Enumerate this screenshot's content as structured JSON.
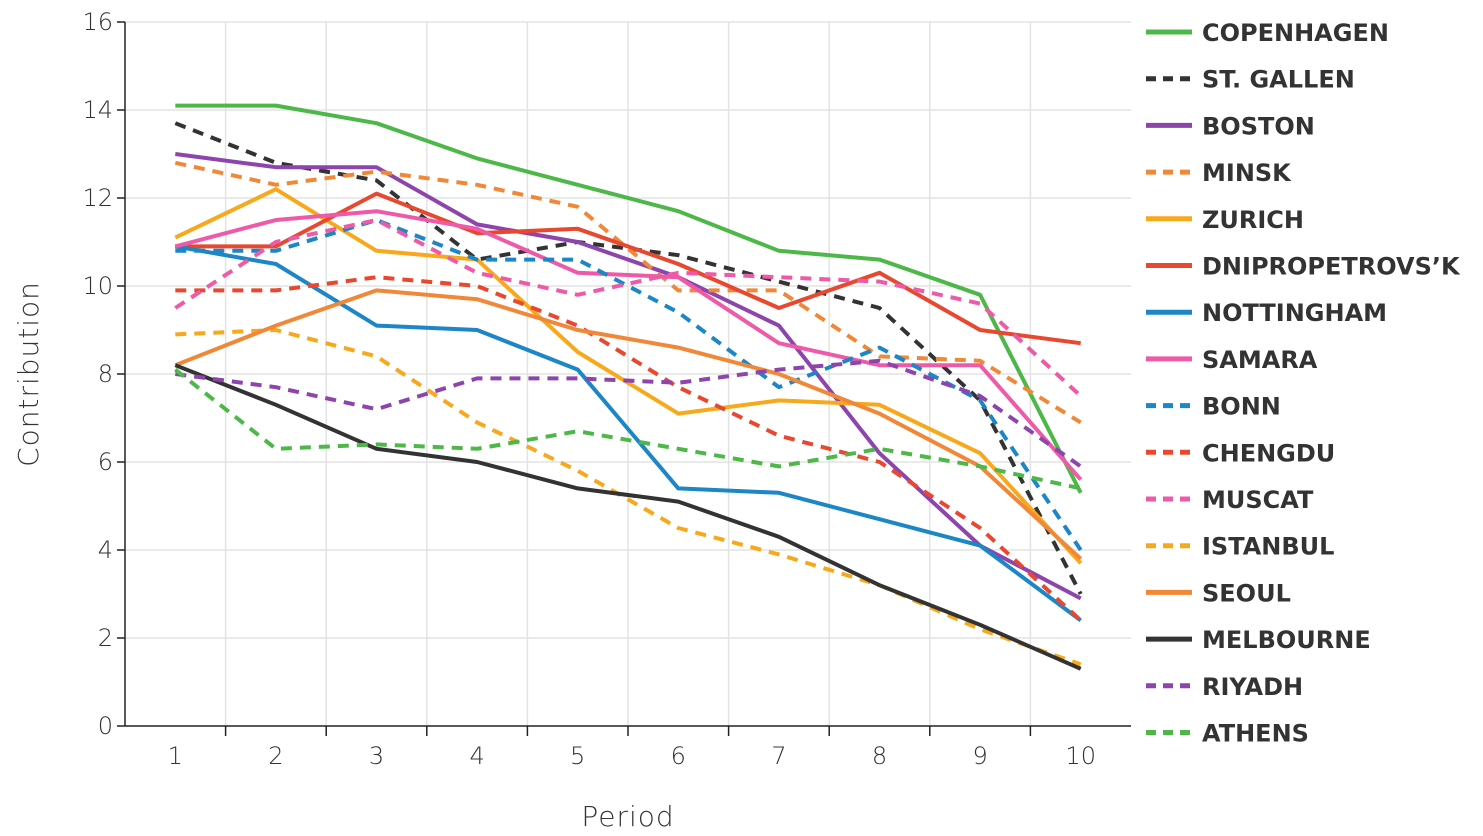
{
  "chart_data": {
    "type": "line",
    "xlabel": "Period",
    "ylabel": "Contribution",
    "x": [
      1,
      2,
      3,
      4,
      5,
      6,
      7,
      8,
      9,
      10
    ],
    "xlim": [
      0.5,
      10.5
    ],
    "ylim": [
      0,
      16
    ],
    "yticks": [
      0,
      2,
      4,
      6,
      8,
      10,
      12,
      14,
      16
    ],
    "grid": true,
    "legend_position": "right",
    "series": [
      {
        "name": "COPENHAGEN",
        "color": "#4db848",
        "dashed": false,
        "values": [
          14.1,
          14.1,
          13.7,
          12.9,
          12.3,
          11.7,
          10.8,
          10.6,
          9.8,
          5.3
        ]
      },
      {
        "name": "ST. GALLEN",
        "color": "#333333",
        "dashed": true,
        "values": [
          13.7,
          12.8,
          12.4,
          10.6,
          11.0,
          10.7,
          10.1,
          9.5,
          7.4,
          3.0
        ]
      },
      {
        "name": "BOSTON",
        "color": "#8e44ad",
        "dashed": false,
        "values": [
          13.0,
          12.7,
          12.7,
          11.4,
          11.0,
          10.2,
          9.1,
          6.2,
          4.1,
          2.9
        ]
      },
      {
        "name": "MINSK",
        "color": "#f08838",
        "dashed": true,
        "values": [
          12.8,
          12.3,
          12.6,
          12.3,
          11.8,
          9.9,
          9.9,
          8.4,
          8.3,
          6.9
        ]
      },
      {
        "name": "ZURICH",
        "color": "#f8a81b",
        "dashed": false,
        "values": [
          11.1,
          12.2,
          10.8,
          10.6,
          8.5,
          7.1,
          7.4,
          7.3,
          6.2,
          3.7
        ]
      },
      {
        "name": "DNIPROPETROVS’K",
        "color": "#e84830",
        "dashed": false,
        "values": [
          10.9,
          10.9,
          12.1,
          11.2,
          11.3,
          10.5,
          9.5,
          10.3,
          9.0,
          8.7
        ]
      },
      {
        "name": "NOTTINGHAM",
        "color": "#1c86c6",
        "dashed": false,
        "values": [
          10.9,
          10.5,
          9.1,
          9.0,
          8.1,
          5.4,
          5.3,
          4.7,
          4.1,
          2.4
        ]
      },
      {
        "name": "SAMARA",
        "color": "#ee5aa8",
        "dashed": false,
        "values": [
          10.9,
          11.5,
          11.7,
          11.3,
          10.3,
          10.2,
          8.7,
          8.2,
          8.2,
          5.6
        ]
      },
      {
        "name": "BONN",
        "color": "#1c86c6",
        "dashed": true,
        "values": [
          10.8,
          10.8,
          11.5,
          10.6,
          10.6,
          9.4,
          7.7,
          8.6,
          7.4,
          4.0
        ]
      },
      {
        "name": "CHENGDU",
        "color": "#e84830",
        "dashed": true,
        "values": [
          9.9,
          9.9,
          10.2,
          10.0,
          9.1,
          7.7,
          6.6,
          6.0,
          4.5,
          2.4
        ]
      },
      {
        "name": "MUSCAT",
        "color": "#ee5aa8",
        "dashed": true,
        "values": [
          9.5,
          11.0,
          11.5,
          10.3,
          9.8,
          10.3,
          10.2,
          10.1,
          9.6,
          7.5
        ]
      },
      {
        "name": "ISTANBUL",
        "color": "#f8a81b",
        "dashed": true,
        "values": [
          8.9,
          9.0,
          8.4,
          6.9,
          5.8,
          4.5,
          3.9,
          3.2,
          2.2,
          1.4
        ]
      },
      {
        "name": "SEOUL",
        "color": "#f08838",
        "dashed": false,
        "values": [
          8.2,
          9.1,
          9.9,
          9.7,
          9.0,
          8.6,
          8.0,
          7.1,
          5.9,
          3.8
        ]
      },
      {
        "name": "MELBOURNE",
        "color": "#333333",
        "dashed": false,
        "values": [
          8.2,
          7.3,
          6.3,
          6.0,
          5.4,
          5.1,
          4.3,
          3.2,
          2.3,
          1.3
        ]
      },
      {
        "name": "RIYADH",
        "color": "#8e44ad",
        "dashed": true,
        "values": [
          8.0,
          7.7,
          7.2,
          7.9,
          7.9,
          7.8,
          8.1,
          8.3,
          7.5,
          5.9
        ]
      },
      {
        "name": "ATHENS",
        "color": "#4db848",
        "dashed": true,
        "values": [
          8.1,
          6.3,
          6.4,
          6.3,
          6.7,
          6.3,
          5.9,
          6.3,
          5.9,
          5.4
        ]
      }
    ]
  }
}
